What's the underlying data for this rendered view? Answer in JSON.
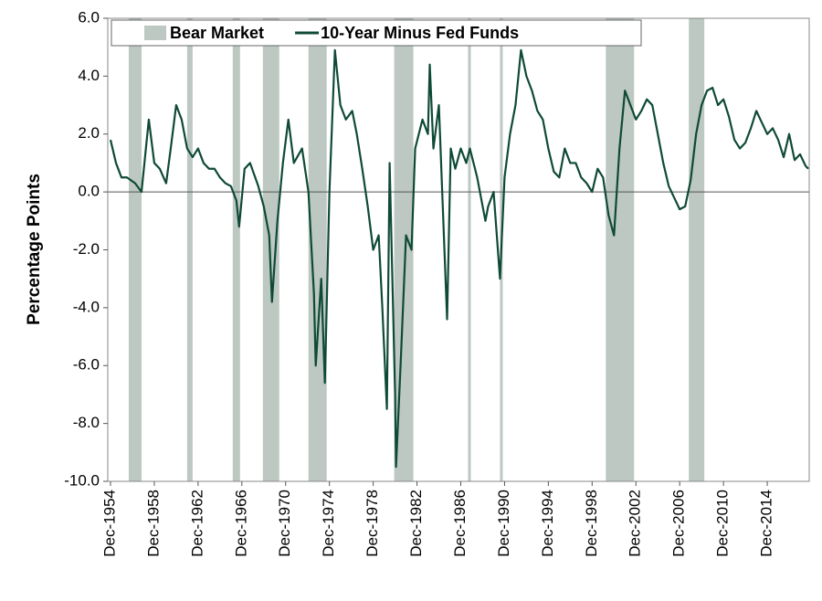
{
  "chart_data": {
    "type": "line",
    "y_label": "Percentage Points",
    "xlim": [
      "1954-09",
      "2018-10"
    ],
    "ylim": [
      -10,
      6
    ],
    "yticks": [
      {
        "value": 6,
        "label": "6.0"
      },
      {
        "value": 4,
        "label": "4.0"
      },
      {
        "value": 2,
        "label": "2.0"
      },
      {
        "value": 0,
        "label": "0.0"
      },
      {
        "value": -2,
        "label": "-2.0"
      },
      {
        "value": -4,
        "label": "-4.0"
      },
      {
        "value": -6,
        "label": "-6.0"
      },
      {
        "value": -8,
        "label": "-8.0"
      },
      {
        "value": -10,
        "label": "-10.0"
      }
    ],
    "xticks": [
      {
        "value": "1954-12",
        "label": "Dec-1954"
      },
      {
        "value": "1958-12",
        "label": "Dec-1958"
      },
      {
        "value": "1962-12",
        "label": "Dec-1962"
      },
      {
        "value": "1966-12",
        "label": "Dec-1966"
      },
      {
        "value": "1970-12",
        "label": "Dec-1970"
      },
      {
        "value": "1974-12",
        "label": "Dec-1974"
      },
      {
        "value": "1978-12",
        "label": "Dec-1978"
      },
      {
        "value": "1982-12",
        "label": "Dec-1982"
      },
      {
        "value": "1986-12",
        "label": "Dec-1986"
      },
      {
        "value": "1990-12",
        "label": "Dec-1990"
      },
      {
        "value": "1994-12",
        "label": "Dec-1994"
      },
      {
        "value": "1998-12",
        "label": "Dec-1998"
      },
      {
        "value": "2002-12",
        "label": "Dec-2002"
      },
      {
        "value": "2006-12",
        "label": "Dec-2006"
      },
      {
        "value": "2010-12",
        "label": "Dec-2010"
      },
      {
        "value": "2014-12",
        "label": "Dec-2014"
      }
    ],
    "zero_line": true,
    "x": [
      "1954-12",
      "1955-06",
      "1955-12",
      "1956-06",
      "1957-03",
      "1957-10",
      "1958-06",
      "1958-12",
      "1959-06",
      "1960-01",
      "1960-06",
      "1960-12",
      "1961-06",
      "1961-12",
      "1962-06",
      "1962-12",
      "1963-06",
      "1963-12",
      "1964-06",
      "1964-12",
      "1965-06",
      "1965-12",
      "1966-06",
      "1966-09",
      "1967-03",
      "1967-09",
      "1968-06",
      "1968-12",
      "1969-06",
      "1969-09",
      "1970-03",
      "1970-09",
      "1971-03",
      "1971-09",
      "1972-06",
      "1973-01",
      "1973-07",
      "1973-09",
      "1974-03",
      "1974-07",
      "1974-12",
      "1975-06",
      "1975-12",
      "1976-06",
      "1977-01",
      "1977-06",
      "1977-12",
      "1978-06",
      "1978-12",
      "1979-06",
      "1979-10",
      "1980-03",
      "1980-06",
      "1980-12",
      "1981-01",
      "1981-06",
      "1981-12",
      "1982-06",
      "1982-10",
      "1983-06",
      "1983-12",
      "1984-02",
      "1984-06",
      "1984-12",
      "1985-09",
      "1986-01",
      "1986-06",
      "1986-12",
      "1987-06",
      "1987-10",
      "1988-06",
      "1989-03",
      "1989-06",
      "1989-12",
      "1990-07",
      "1990-12",
      "1991-06",
      "1991-12",
      "1992-06",
      "1992-12",
      "1993-06",
      "1993-12",
      "1994-06",
      "1994-12",
      "1995-06",
      "1995-12",
      "1996-06",
      "1996-12",
      "1997-06",
      "1997-12",
      "1998-06",
      "1998-12",
      "1999-06",
      "1999-12",
      "2000-06",
      "2000-12",
      "2001-06",
      "2001-12",
      "2002-06",
      "2002-12",
      "2003-06",
      "2003-12",
      "2004-06",
      "2004-12",
      "2005-06",
      "2005-12",
      "2006-06",
      "2006-12",
      "2007-06",
      "2007-12",
      "2008-06",
      "2008-12",
      "2009-06",
      "2009-12",
      "2010-06",
      "2010-12",
      "2011-06",
      "2011-12",
      "2012-06",
      "2012-12",
      "2013-06",
      "2013-12",
      "2014-06",
      "2014-12",
      "2015-06",
      "2015-12",
      "2016-06",
      "2016-12",
      "2017-06",
      "2017-12",
      "2018-06",
      "2018-09"
    ],
    "series": [
      {
        "name": "Bear Market",
        "color": "#bcc8c1",
        "kind": "shading",
        "periods": [
          [
            "1956-08",
            "1957-10"
          ],
          [
            "1961-12",
            "1962-06"
          ],
          [
            "1966-02",
            "1966-10"
          ],
          [
            "1968-11",
            "1970-05"
          ],
          [
            "1973-01",
            "1974-09"
          ],
          [
            "1980-11",
            "1982-08"
          ],
          [
            "1987-08",
            "1987-11"
          ],
          [
            "1990-07",
            "1990-10"
          ],
          [
            "2000-03",
            "2002-10"
          ],
          [
            "2007-10",
            "2009-03"
          ]
        ]
      },
      {
        "name": "10-Year Minus Fed Funds",
        "color": "#0f4a37",
        "values": [
          1.8,
          1.0,
          0.5,
          0.5,
          0.3,
          0.0,
          2.5,
          1.0,
          0.8,
          0.3,
          1.5,
          3.0,
          2.5,
          1.5,
          1.2,
          1.5,
          1.0,
          0.8,
          0.8,
          0.5,
          0.3,
          0.2,
          -0.3,
          -1.2,
          0.8,
          1.0,
          0.2,
          -0.5,
          -1.5,
          -3.8,
          -1.0,
          1.0,
          2.5,
          1.0,
          1.5,
          0.0,
          -3.5,
          -6.0,
          -3.0,
          -6.6,
          0.0,
          4.9,
          3.0,
          2.5,
          2.8,
          2.0,
          0.8,
          -0.5,
          -2.0,
          -1.5,
          -4.0,
          -7.5,
          1.0,
          -7.0,
          -9.5,
          -6.0,
          -1.5,
          -2.0,
          1.5,
          2.5,
          2.0,
          4.4,
          1.5,
          3.0,
          -4.4,
          1.5,
          0.8,
          1.5,
          1.0,
          1.5,
          0.5,
          -1.0,
          -0.5,
          0.0,
          -3.0,
          0.5,
          2.0,
          3.0,
          4.9,
          4.0,
          3.5,
          2.8,
          2.5,
          1.5,
          0.7,
          0.5,
          1.5,
          1.0,
          1.0,
          0.5,
          0.3,
          0.0,
          0.8,
          0.5,
          -0.8,
          -1.5,
          1.5,
          3.5,
          3.0,
          2.5,
          2.8,
          3.2,
          3.0,
          2.0,
          1.0,
          0.2,
          -0.2,
          -0.6,
          -0.5,
          0.4,
          2.0,
          3.0,
          3.5,
          3.6,
          3.0,
          3.2,
          2.6,
          1.8,
          1.5,
          1.7,
          2.2,
          2.8,
          2.4,
          2.0,
          2.2,
          1.8,
          1.2,
          2.0,
          1.1,
          1.3,
          0.9,
          0.8
        ]
      }
    ]
  }
}
